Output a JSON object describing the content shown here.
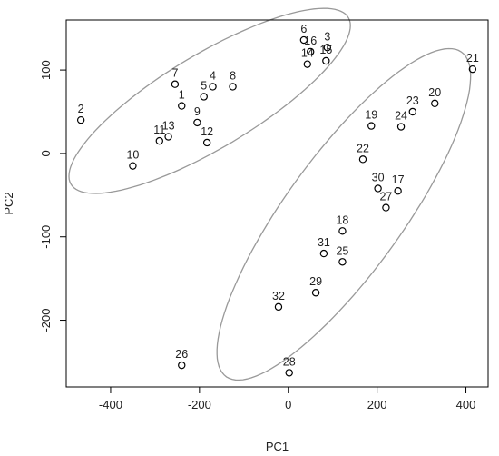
{
  "chart_data": {
    "type": "scatter",
    "title": "",
    "xlabel": "PC1",
    "ylabel": "PC2",
    "xlim": [
      -500,
      450
    ],
    "ylim": [
      -280,
      160
    ],
    "xticks": [
      -400,
      -200,
      0,
      200,
      400
    ],
    "yticks": [
      -200,
      -100,
      0,
      100
    ],
    "xtick_labels": [
      "-400",
      "-200",
      "0",
      "200",
      "400"
    ],
    "ytick_labels": [
      "-200",
      "-100",
      "0",
      "100"
    ],
    "grid": false,
    "legend": "none",
    "point_color": "#000000",
    "ellipse_color": "#999999",
    "points": [
      {
        "label": "1",
        "x": -240,
        "y": 57
      },
      {
        "label": "2",
        "x": -467,
        "y": 40
      },
      {
        "label": "3",
        "x": 88,
        "y": 127
      },
      {
        "label": "4",
        "x": -170,
        "y": 80
      },
      {
        "label": "5",
        "x": -190,
        "y": 68
      },
      {
        "label": "6",
        "x": 35,
        "y": 136
      },
      {
        "label": "7",
        "x": -255,
        "y": 83
      },
      {
        "label": "8",
        "x": -125,
        "y": 80
      },
      {
        "label": "9",
        "x": -205,
        "y": 37
      },
      {
        "label": "10",
        "x": -350,
        "y": -15
      },
      {
        "label": "11",
        "x": -290,
        "y": 15
      },
      {
        "label": "12",
        "x": -183,
        "y": 13
      },
      {
        "label": "13",
        "x": -270,
        "y": 20
      },
      {
        "label": "14",
        "x": 43,
        "y": 107
      },
      {
        "label": "15",
        "x": 85,
        "y": 111
      },
      {
        "label": "16",
        "x": 50,
        "y": 122
      },
      {
        "label": "17",
        "x": 247,
        "y": -45
      },
      {
        "label": "18",
        "x": 122,
        "y": -93
      },
      {
        "label": "19",
        "x": 187,
        "y": 33
      },
      {
        "label": "20",
        "x": 330,
        "y": 60
      },
      {
        "label": "21",
        "x": 415,
        "y": 101
      },
      {
        "label": "22",
        "x": 168,
        "y": -7
      },
      {
        "label": "23",
        "x": 280,
        "y": 50
      },
      {
        "label": "24",
        "x": 254,
        "y": 32
      },
      {
        "label": "25",
        "x": 122,
        "y": -130
      },
      {
        "label": "26",
        "x": -240,
        "y": -254
      },
      {
        "label": "27",
        "x": 220,
        "y": -65
      },
      {
        "label": "28",
        "x": 2,
        "y": -263
      },
      {
        "label": "29",
        "x": 62,
        "y": -167
      },
      {
        "label": "30",
        "x": 202,
        "y": -42
      },
      {
        "label": "31",
        "x": 80,
        "y": -120
      },
      {
        "label": "32",
        "x": -22,
        "y": -184
      }
    ],
    "ellipses": [
      {
        "center_x": -177,
        "center_y": 63,
        "semi_major": 330,
        "semi_minor": 62,
        "angle_deg": 16.5
      },
      {
        "center_x": 125,
        "center_y": -73,
        "semi_major": 335,
        "semi_minor": 94,
        "angle_deg": 33
      }
    ]
  }
}
